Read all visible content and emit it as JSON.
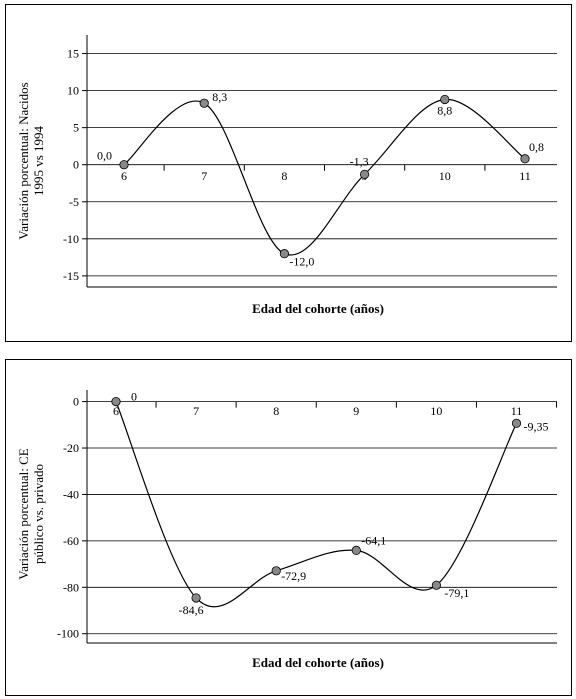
{
  "chart_data": [
    {
      "type": "line",
      "title": "",
      "xlabel": "Edad del cohorte (años)",
      "ylabel_lines": [
        "Variación porcentual: Nacidos",
        "1995 vs 1994"
      ],
      "x": [
        6,
        7,
        8,
        9,
        10,
        11
      ],
      "x_tick_labels": [
        "6",
        "7",
        "8",
        "9",
        "10",
        "11"
      ],
      "values": [
        0.0,
        8.3,
        -12.0,
        -1.3,
        8.8,
        0.8
      ],
      "data_labels": [
        "0,0",
        "8,3",
        "-12,0",
        "-1,3",
        "8,8",
        "0,8"
      ],
      "y_ticks": [
        15,
        10,
        5,
        0,
        -5,
        -10,
        -15
      ],
      "ylim": [
        -16.5,
        17.5
      ],
      "grid": true,
      "colors": {
        "line": "#000000",
        "marker": "#888888"
      }
    },
    {
      "type": "line",
      "title": "",
      "xlabel": "Edad del cohorte (años)",
      "ylabel_lines": [
        "Variación porcentual: CE",
        "público vs. privado"
      ],
      "x": [
        6,
        7,
        8,
        9,
        10,
        11
      ],
      "x_tick_labels": [
        "6",
        "7",
        "8",
        "9",
        "10",
        "11"
      ],
      "values": [
        0,
        -84.6,
        -72.9,
        -64.1,
        -79.1,
        -9.35
      ],
      "data_labels": [
        "0",
        "-84,6",
        "-72,9",
        "-64,1",
        "-79,1",
        "-9,35"
      ],
      "y_ticks": [
        0,
        -20,
        -40,
        -60,
        -80,
        -100
      ],
      "ylim": [
        -104,
        5
      ],
      "grid": true,
      "colors": {
        "line": "#000000",
        "marker": "#888888"
      }
    }
  ]
}
